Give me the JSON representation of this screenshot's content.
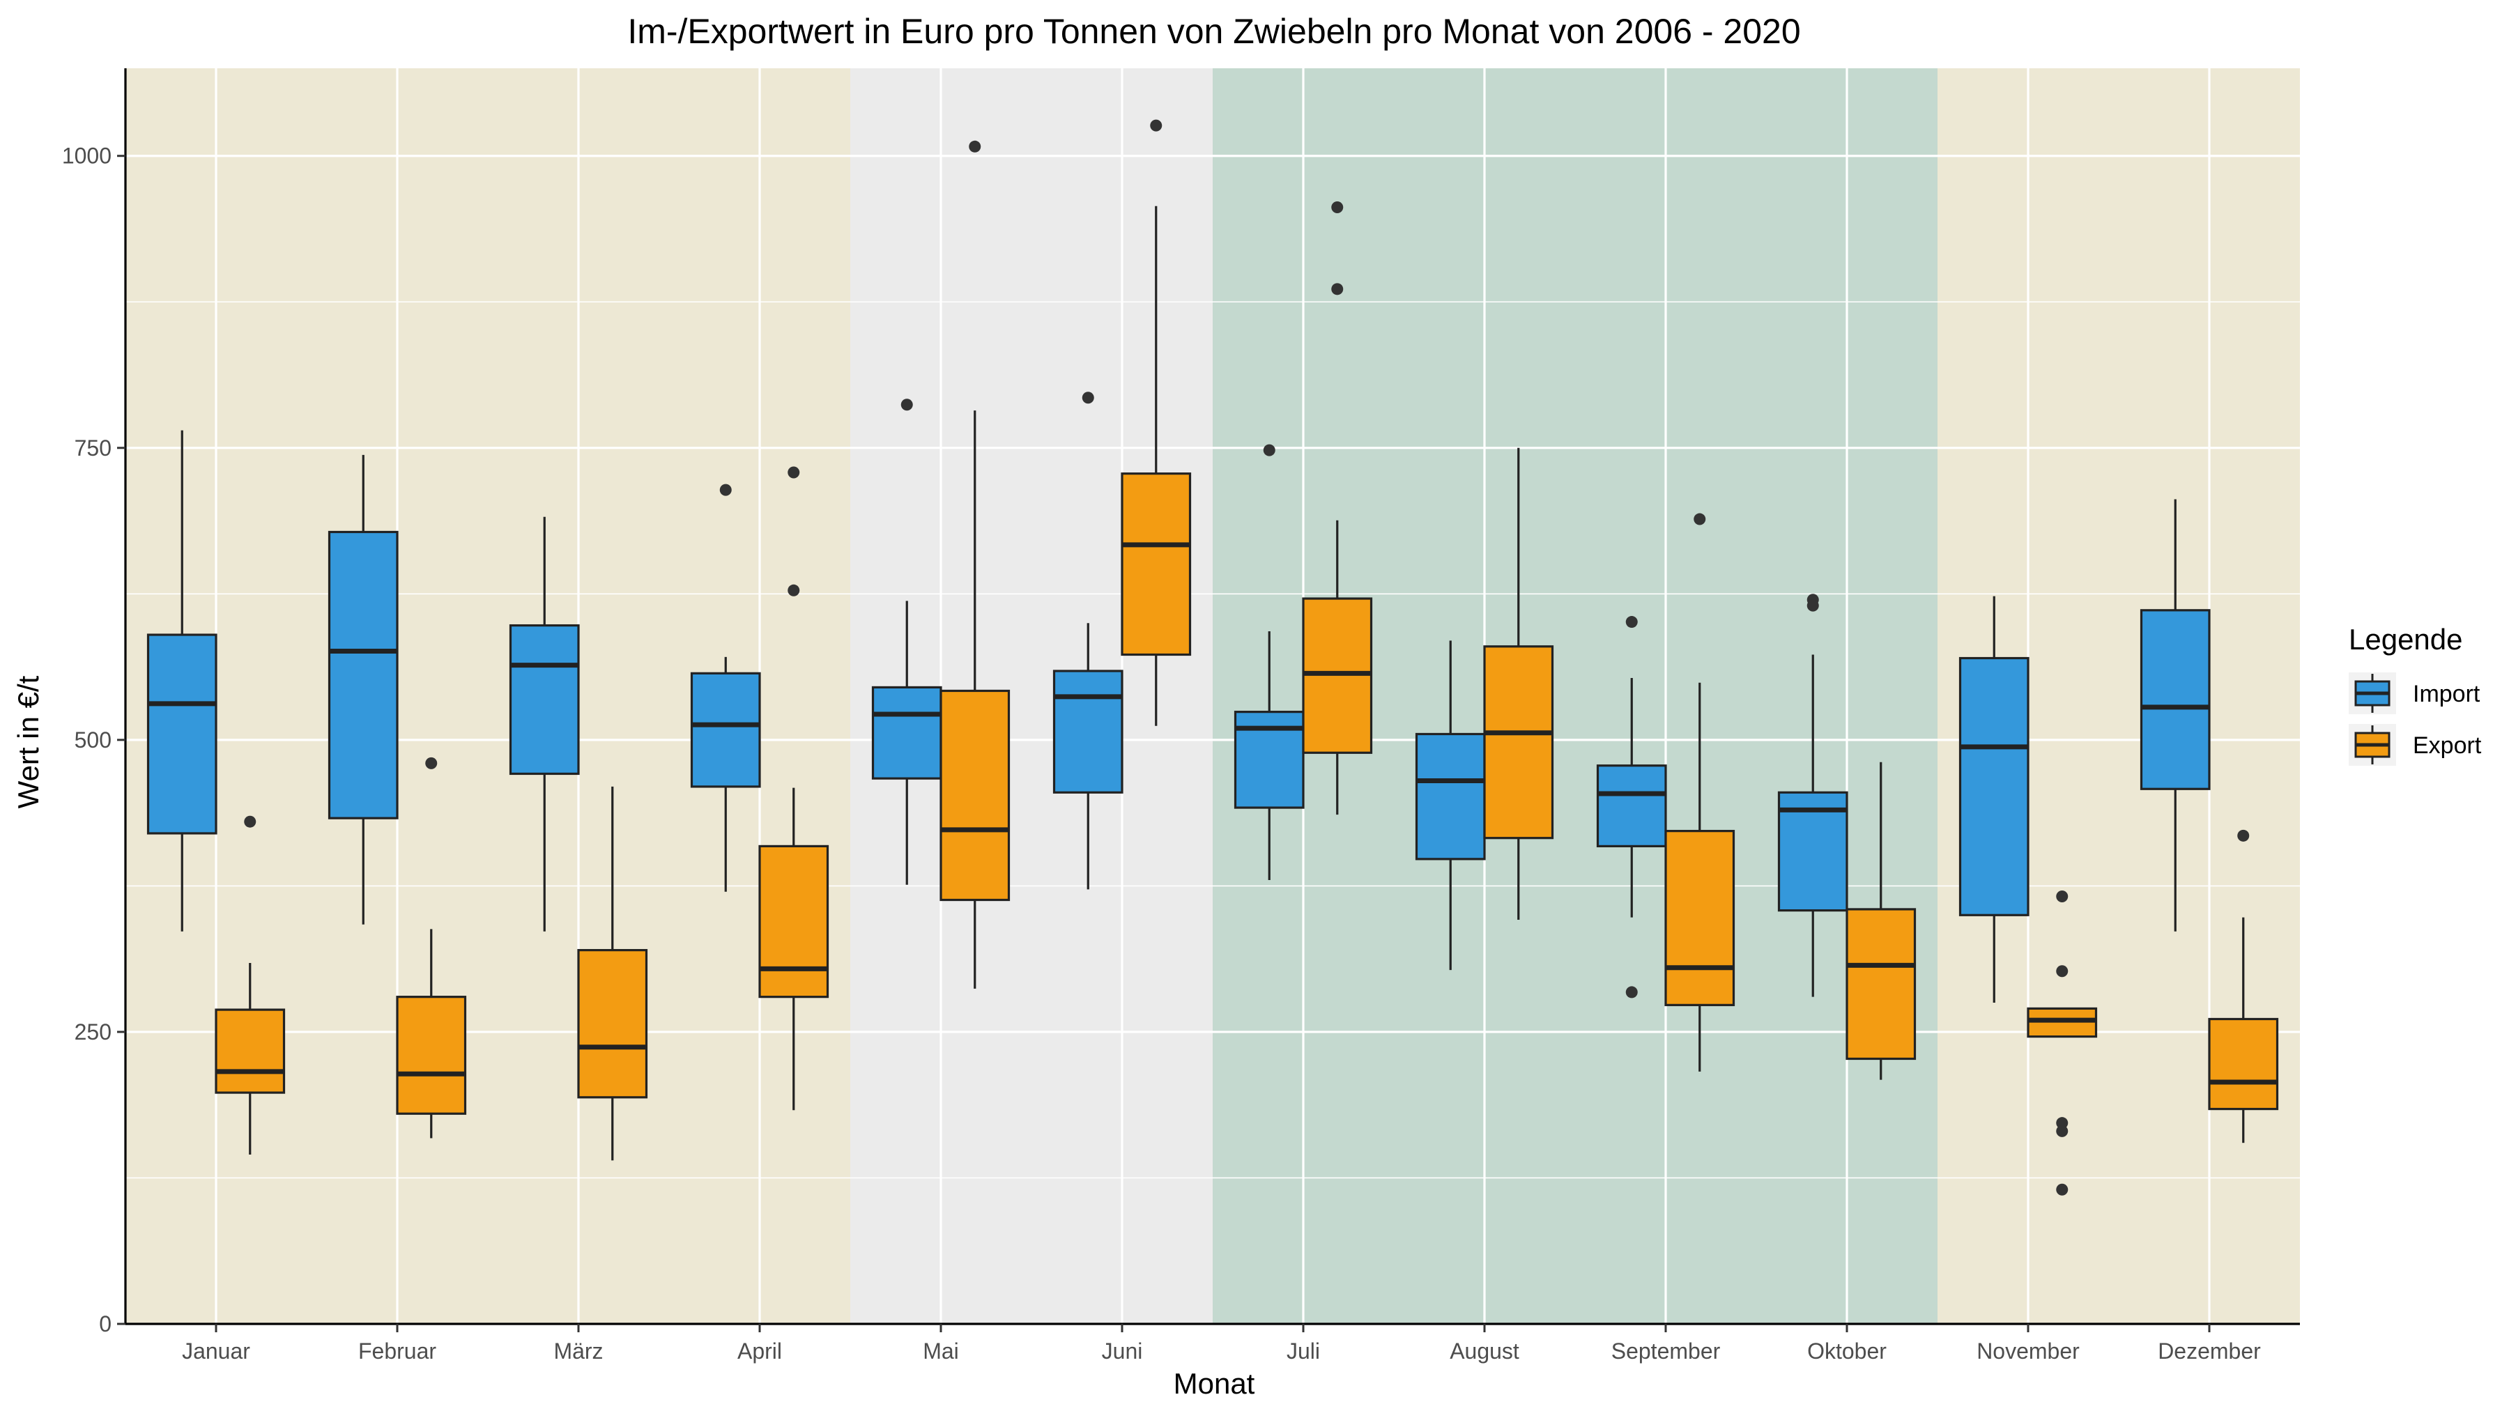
{
  "chart_data": {
    "type": "boxplot",
    "title": "Im-/Exportwert in Euro pro Tonnen von Zwiebeln pro Monat von 2006 - 2020",
    "xlabel": "Monat",
    "ylabel": "Wert in €/t",
    "ylim": [
      0,
      1075
    ],
    "yticks": [
      0,
      250,
      500,
      750,
      1000
    ],
    "grid": true,
    "legend": {
      "title": "Legende",
      "position": "right"
    },
    "categories": [
      "Januar",
      "Februar",
      "März",
      "April",
      "Mai",
      "Juni",
      "Juli",
      "August",
      "September",
      "Oktober",
      "November",
      "Dezember"
    ],
    "season_bands": [
      {
        "from": "Januar",
        "to": "April",
        "color": "#ede8d4"
      },
      {
        "from": "Mai",
        "to": "Juni",
        "color": "#ebebeb"
      },
      {
        "from": "Juli",
        "to": "Oktober",
        "color": "#c4d9cf"
      },
      {
        "from": "November",
        "to": "Dezember",
        "color": "#ede8d4"
      }
    ],
    "series": [
      {
        "name": "Import",
        "color": "#3498db",
        "boxes": [
          {
            "min": 336,
            "q1": 420,
            "median": 531,
            "q3": 590,
            "max": 765,
            "outliers": []
          },
          {
            "min": 342,
            "q1": 433,
            "median": 576,
            "q3": 678,
            "max": 744,
            "outliers": []
          },
          {
            "min": 336,
            "q1": 471,
            "median": 564,
            "q3": 598,
            "max": 691,
            "outliers": []
          },
          {
            "min": 370,
            "q1": 460,
            "median": 513,
            "q3": 557,
            "max": 571,
            "outliers": [
              714
            ]
          },
          {
            "min": 376,
            "q1": 467,
            "median": 522,
            "q3": 545,
            "max": 619,
            "outliers": [
              787
            ]
          },
          {
            "min": 372,
            "q1": 455,
            "median": 537,
            "q3": 559,
            "max": 600,
            "outliers": [
              793
            ]
          },
          {
            "min": 380,
            "q1": 442,
            "median": 510,
            "q3": 524,
            "max": 593,
            "outliers": [
              748
            ]
          },
          {
            "min": 303,
            "q1": 398,
            "median": 465,
            "q3": 505,
            "max": 585,
            "outliers": []
          },
          {
            "min": 348,
            "q1": 409,
            "median": 454,
            "q3": 478,
            "max": 553,
            "outliers": [
              601,
              284
            ]
          },
          {
            "min": 280,
            "q1": 354,
            "median": 440,
            "q3": 455,
            "max": 573,
            "outliers": [
              620,
              615
            ]
          },
          {
            "min": 275,
            "q1": 350,
            "median": 494,
            "q3": 570,
            "max": 623,
            "outliers": []
          },
          {
            "min": 336,
            "q1": 458,
            "median": 528,
            "q3": 611,
            "max": 706,
            "outliers": []
          }
        ]
      },
      {
        "name": "Export",
        "color": "#f39c12",
        "boxes": [
          {
            "min": 145,
            "q1": 198,
            "median": 216,
            "q3": 269,
            "max": 309,
            "outliers": [
              430
            ]
          },
          {
            "min": 159,
            "q1": 180,
            "median": 214,
            "q3": 280,
            "max": 338,
            "outliers": [
              480
            ]
          },
          {
            "min": 140,
            "q1": 194,
            "median": 237,
            "q3": 320,
            "max": 460,
            "outliers": []
          },
          {
            "min": 183,
            "q1": 280,
            "median": 304,
            "q3": 409,
            "max": 459,
            "outliers": [
              729,
              628
            ]
          },
          {
            "min": 287,
            "q1": 363,
            "median": 423,
            "q3": 542,
            "max": 782,
            "outliers": [
              1008
            ]
          },
          {
            "min": 512,
            "q1": 573,
            "median": 667,
            "q3": 728,
            "max": 957,
            "outliers": [
              1026
            ]
          },
          {
            "min": 436,
            "q1": 489,
            "median": 557,
            "q3": 621,
            "max": 688,
            "outliers": [
              956,
              886
            ]
          },
          {
            "min": 346,
            "q1": 416,
            "median": 506,
            "q3": 580,
            "max": 750,
            "outliers": []
          },
          {
            "min": 216,
            "q1": 273,
            "median": 305,
            "q3": 422,
            "max": 549,
            "outliers": [
              689
            ]
          },
          {
            "min": 209,
            "q1": 227,
            "median": 307,
            "q3": 355,
            "max": 481,
            "outliers": []
          },
          {
            "min": 246,
            "q1": 246,
            "median": 260,
            "q3": 270,
            "max": 270,
            "outliers": [
              366,
              302,
              172,
              165,
              115
            ]
          },
          {
            "min": 155,
            "q1": 184,
            "median": 207,
            "q3": 261,
            "max": 348,
            "outliers": [
              418
            ]
          }
        ]
      }
    ]
  }
}
